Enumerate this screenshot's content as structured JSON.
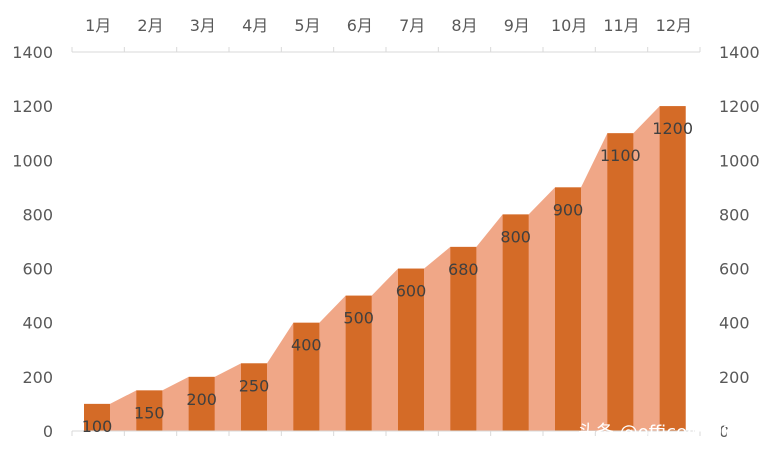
{
  "chart_data": {
    "type": "bar",
    "categories": [
      "1月",
      "2月",
      "3月",
      "4月",
      "5月",
      "6月",
      "7月",
      "8月",
      "9月",
      "10月",
      "11月",
      "12月"
    ],
    "series": [
      {
        "values": [
          100,
          150,
          200,
          250,
          400,
          500,
          600,
          680,
          800,
          900,
          1100,
          1200
        ]
      }
    ],
    "area_fill": true,
    "ylim": [
      0,
      1400
    ],
    "yticks": [
      0,
      200,
      400,
      600,
      800,
      1000,
      1200,
      1400
    ],
    "secondary_yaxis": true,
    "xaxis_position": "top",
    "grid": false,
    "data_labels": true,
    "colors": {
      "bar": "#d46b27",
      "area": "#f0a787",
      "axis_line": "#d9d9d9"
    }
  },
  "watermark": "头条 @office研习社"
}
